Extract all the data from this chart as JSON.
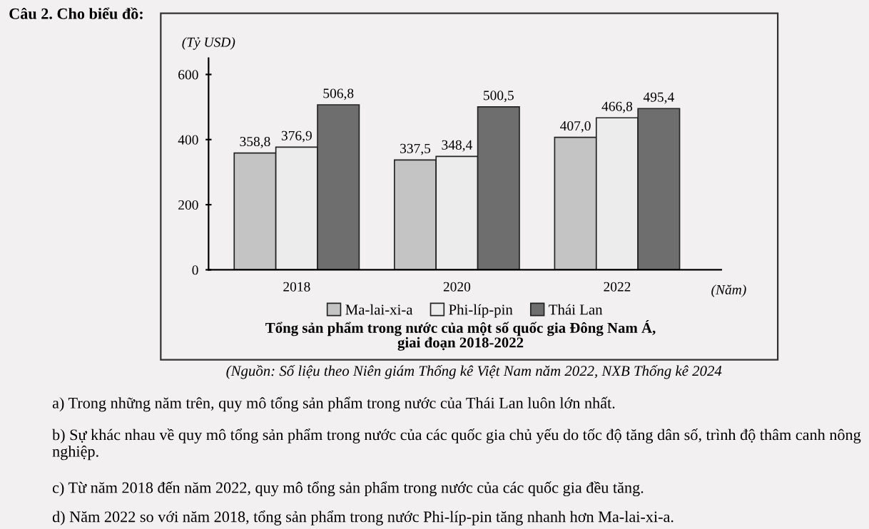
{
  "chart_data": {
    "type": "bar",
    "title": "Tổng sản phẩm trong nước của một số quốc gia Đông Nam Á,\ngiai đoạn 2018-2022",
    "ylabel": "(Tỷ USD)",
    "xlabel": "(Năm)",
    "categories": [
      "2018",
      "2020",
      "2022"
    ],
    "series": [
      {
        "name": "Ma-lai-xi-a",
        "color": "#c4c4c4",
        "values": [
          358.8,
          337.5,
          407.0
        ],
        "value_labels": [
          "358,8",
          "337,5",
          "407,0"
        ]
      },
      {
        "name": "Phi-líp-pin",
        "color": "#ececec",
        "values": [
          376.9,
          348.4,
          466.8
        ],
        "value_labels": [
          "376,9",
          "348,4",
          "466,8"
        ]
      },
      {
        "name": "Thái Lan",
        "color": "#6e6e6e",
        "values": [
          506.8,
          500.5,
          495.4
        ],
        "value_labels": [
          "506,8",
          "500,5",
          "495,4"
        ]
      }
    ],
    "ylim": [
      0,
      650
    ],
    "yticks": [
      0,
      200,
      400,
      600
    ],
    "grid": false,
    "legend": "bottom",
    "annotations": [
      "Câu 2. Cho biểu đồ:",
      "(Nguồn: Số liệu theo Niên giám Thống kê Việt Nam năm 2022, NXB Thống kê 2024",
      "a) Trong những năm trên, quy mô tổng sản phẩm trong nước của Thái Lan luôn lớn nhất.",
      "b) Sự khác nhau về quy mô tổng sản phẩm trong nước của các quốc gia chủ yếu do tốc độ tăng dân số, trình độ thâm canh nông nghiệp.",
      "c) Từ năm 2018 đến năm 2022, quy mô tổng sản phẩm trong nước của các quốc gia đều tăng.",
      "d) Năm 2022 so với năm 2018, tổng sản phẩm trong nước Phi-líp-pin tăng nhanh hơn Ma-lai-xi-a."
    ]
  }
}
